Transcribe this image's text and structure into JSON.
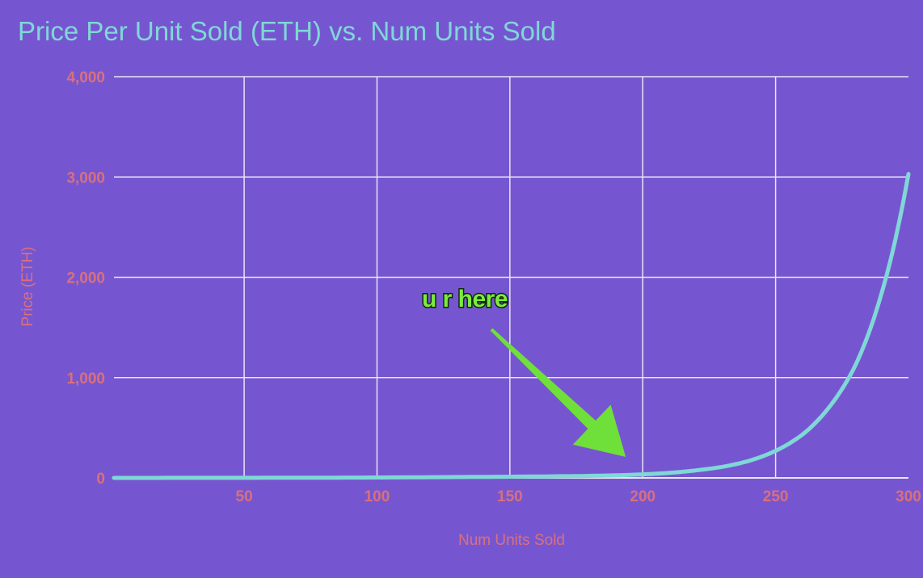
{
  "colors": {
    "background": "#7656d0",
    "title": "#7fd8d6",
    "series": "#7fd8d6",
    "tick": "#d8707e",
    "grid": "#e8e4f4",
    "annotation": "#7dea3e"
  },
  "chart_data": {
    "type": "line",
    "title": "Price Per Unit Sold (ETH) vs. Num Units Sold",
    "xlabel": "Num Units Sold",
    "ylabel": "Price (ETH)",
    "xlim": [
      1,
      300
    ],
    "ylim": [
      0,
      4000
    ],
    "x_ticks": [
      50,
      100,
      150,
      200,
      250,
      300
    ],
    "y_ticks": [
      0,
      1000,
      2000,
      3000,
      4000
    ],
    "x_tick_labels": [
      "50",
      "100",
      "150",
      "200",
      "250",
      "300"
    ],
    "y_tick_labels": [
      "0",
      "1,000",
      "2,000",
      "3,000",
      "4,000"
    ],
    "grid": true,
    "legend": "none",
    "series": [
      {
        "x": [
          1,
          25,
          50,
          75,
          100,
          125,
          150,
          175,
          190,
          200,
          210,
          220,
          230,
          240,
          250,
          260,
          270,
          280,
          290,
          300
        ],
        "values": [
          0.2,
          0.5,
          1,
          2,
          4,
          8,
          12,
          18,
          26,
          35,
          50,
          75,
          110,
          170,
          270,
          430,
          700,
          1120,
          1850,
          3030
        ]
      }
    ],
    "annotations": [
      {
        "text": "u r here",
        "x": 193,
        "y": 0
      }
    ]
  }
}
